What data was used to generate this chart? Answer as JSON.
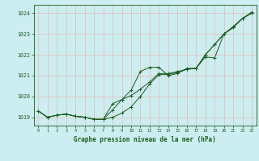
{
  "xlabel": "Graphe pression niveau de la mer (hPa)",
  "bg_color": "#cceef0",
  "grid_color": "#e8b8b8",
  "line_color": "#1a5c1a",
  "text_color": "#1a5c1a",
  "ylim": [
    1018.6,
    1024.4
  ],
  "xlim": [
    -0.5,
    23.5
  ],
  "yticks": [
    1019,
    1020,
    1021,
    1022,
    1023,
    1024
  ],
  "xticks": [
    0,
    1,
    2,
    3,
    4,
    5,
    6,
    7,
    8,
    9,
    10,
    11,
    12,
    13,
    14,
    15,
    16,
    17,
    18,
    19,
    20,
    21,
    22,
    23
  ],
  "series1": [
    1019.3,
    1019.0,
    1019.1,
    1019.15,
    1019.05,
    1019.0,
    1018.9,
    1018.9,
    1019.0,
    1019.2,
    1019.5,
    1020.0,
    1020.6,
    1021.05,
    1021.05,
    1021.15,
    1021.3,
    1021.35,
    1022.0,
    1022.5,
    1023.0,
    1023.35,
    1023.75,
    1024.0
  ],
  "series2": [
    1019.3,
    1019.0,
    1019.1,
    1019.15,
    1019.05,
    1019.0,
    1018.9,
    1018.9,
    1019.65,
    1019.85,
    1020.05,
    1020.35,
    1020.7,
    1021.1,
    1021.1,
    1021.2,
    1021.3,
    1021.35,
    1022.0,
    1022.5,
    1023.0,
    1023.35,
    1023.75,
    1024.0
  ],
  "series3": [
    1019.3,
    1019.0,
    1019.1,
    1019.15,
    1019.05,
    1019.0,
    1018.9,
    1018.9,
    1019.35,
    1019.85,
    1020.3,
    1021.2,
    1021.4,
    1021.4,
    1021.0,
    1021.1,
    1021.35,
    1021.35,
    1021.9,
    1021.85,
    1023.0,
    1023.3,
    1023.75,
    1024.05
  ]
}
